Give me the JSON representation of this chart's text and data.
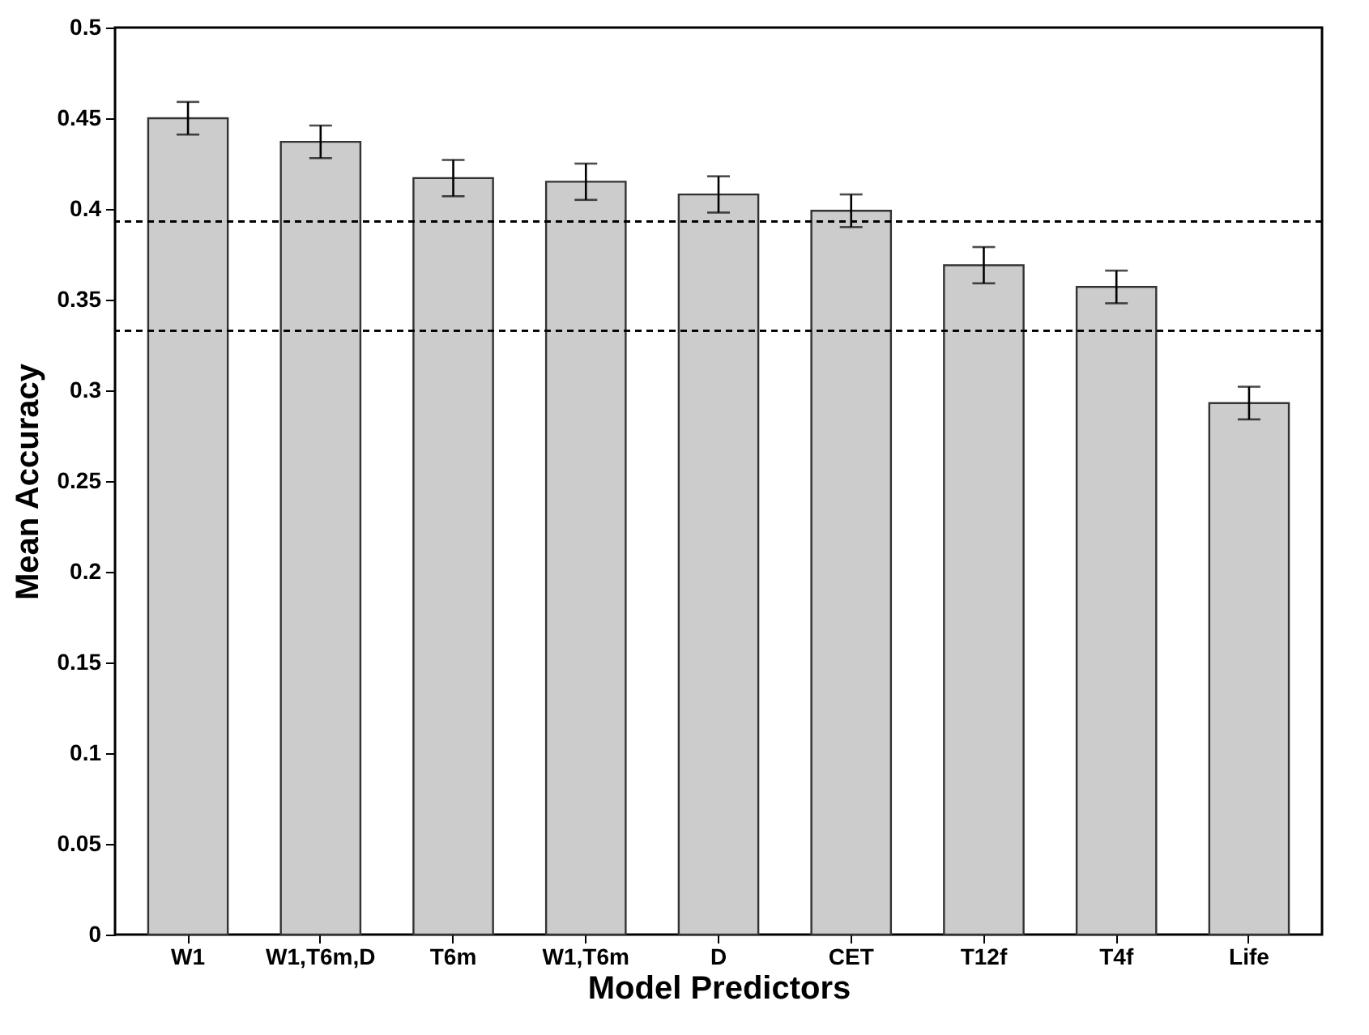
{
  "chart_data": {
    "type": "bar",
    "xlabel": "Model Predictors",
    "ylabel": "Mean Accuracy",
    "categories": [
      "W1",
      "W1,T6m,D",
      "T6m",
      "W1,T6m",
      "D",
      "CET",
      "T12f",
      "T4f",
      "Life"
    ],
    "values": [
      0.45,
      0.437,
      0.417,
      0.415,
      0.408,
      0.399,
      0.369,
      0.357,
      0.293
    ],
    "errors": [
      0.009,
      0.009,
      0.01,
      0.01,
      0.01,
      0.009,
      0.01,
      0.009,
      0.009
    ],
    "color": "#cccccc",
    "ylim": [
      0,
      0.5
    ],
    "yticks": [
      0,
      0.05,
      0.1,
      0.15,
      0.2,
      0.25,
      0.3,
      0.35,
      0.4,
      0.45,
      0.5
    ],
    "ref_lines": [
      {
        "axis": "y",
        "value": 0.393,
        "line_style": "dashed",
        "color": "#000000"
      },
      {
        "axis": "y",
        "value": 0.333,
        "line_style": "dashed",
        "color": "#000000"
      }
    ],
    "grid": false
  }
}
